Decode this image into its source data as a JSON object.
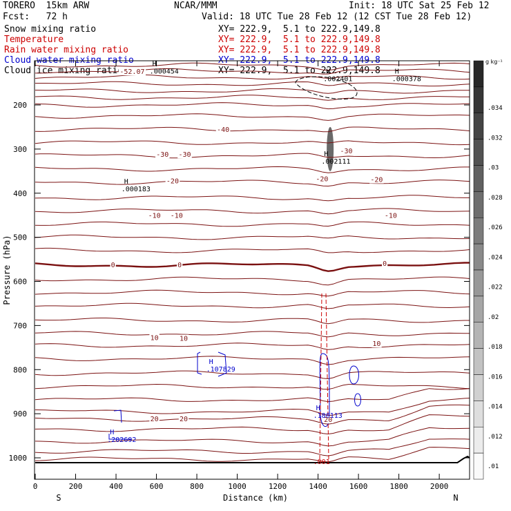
{
  "header": {
    "model": "TORERO  15km ARW",
    "center": "NCAR/MMM",
    "init": "Init: 18 UTC Sat 25 Feb 12",
    "fcst": "Fcst:   72 h",
    "valid": "Valid: 18 UTC Tue 28 Feb 12 (12 CST Tue 28 Feb 12)"
  },
  "legend": [
    {
      "label": "Snow mixing ratio",
      "xy": "XY= 222.9,  5.1 to 222.9,149.8",
      "color": "#000000"
    },
    {
      "label": "Temperature",
      "xy": "XY= 222.9,  5.1 to 222.9,149.8",
      "color": "#cc0000"
    },
    {
      "label": "Rain water mixing ratio",
      "xy": "XY= 222.9,  5.1 to 222.9,149.8",
      "color": "#cc0000"
    },
    {
      "label": "Cloud water mixing ratio",
      "xy": "XY= 222.9,  5.1 to 222.9,149.8",
      "color": "#0000cc"
    },
    {
      "label": "Cloud ice mixing ratio",
      "xy": "XY= 222.9,  5.1 to 222.9,149.8",
      "color": "#000000"
    }
  ],
  "colorbar": {
    "unit": "g kg⁻¹",
    "labels": [
      ".034",
      ".032",
      ".03",
      ".028",
      ".026",
      ".024",
      ".022",
      ".02",
      ".018",
      ".016",
      ".014",
      ".012",
      ".01"
    ]
  },
  "chart_data": {
    "type": "contour cross-section",
    "xlabel": "Distance (km)",
    "ylabel": "Pressure (hPa)",
    "xlim": [
      0,
      2150
    ],
    "ylim": [
      1050,
      100
    ],
    "x_ticks": [
      0,
      200,
      400,
      600,
      800,
      1000,
      1200,
      1400,
      1600,
      1800,
      2000
    ],
    "y_ticks": [
      200,
      300,
      400,
      500,
      600,
      700,
      800,
      900,
      1000
    ],
    "x_end_labels": {
      "left": "S",
      "right": "N"
    },
    "temperature_contour_labels": [
      {
        "text": "-52.07",
        "x": 480,
        "p": 125
      },
      {
        "text": "-40",
        "x": 930,
        "p": 256
      },
      {
        "text": "-30",
        "x": 630,
        "p": 313
      },
      {
        "text": "-30",
        "x": 740,
        "p": 313
      },
      {
        "text": "-30",
        "x": 1540,
        "p": 305
      },
      {
        "text": "-20",
        "x": 680,
        "p": 373
      },
      {
        "text": "-20",
        "x": 1420,
        "p": 368
      },
      {
        "text": "-20",
        "x": 1690,
        "p": 370
      },
      {
        "text": "-10",
        "x": 590,
        "p": 451
      },
      {
        "text": "-10",
        "x": 700,
        "p": 451
      },
      {
        "text": "-10",
        "x": 1760,
        "p": 451
      },
      {
        "text": "0",
        "x": 385,
        "p": 563
      },
      {
        "text": "0",
        "x": 715,
        "p": 563
      },
      {
        "text": "0",
        "x": 1730,
        "p": 560
      },
      {
        "text": "10",
        "x": 590,
        "p": 728
      },
      {
        "text": "10",
        "x": 735,
        "p": 730
      },
      {
        "text": "10",
        "x": 1690,
        "p": 742
      },
      {
        "text": "20",
        "x": 590,
        "p": 912
      },
      {
        "text": "20",
        "x": 735,
        "p": 912
      },
      {
        "text": "20",
        "x": 1450,
        "p": 914
      }
    ],
    "extrema_labels": [
      {
        "mark": "H",
        "value": ".000454",
        "x": 580,
        "p": 118,
        "color": "#000000"
      },
      {
        "mark": "H",
        "value": ".002401",
        "x": 1440,
        "p": 135,
        "color": "#000000"
      },
      {
        "mark": "H",
        "value": ".000378",
        "x": 1780,
        "p": 135,
        "color": "#000000"
      },
      {
        "mark": "H",
        "value": ".002111",
        "x": 1430,
        "p": 322,
        "color": "#000000"
      },
      {
        "mark": "H",
        "value": ".000183",
        "x": 440,
        "p": 385,
        "color": "#000000"
      },
      {
        "mark": "H",
        "value": ".107829",
        "x": 860,
        "p": 793,
        "color": "#0000cc"
      },
      {
        "mark": "H",
        "value": ".186113",
        "x": 1390,
        "p": 898,
        "color": "#0000cc"
      },
      {
        "mark": "H",
        "value": ".202692",
        "x": 370,
        "p": 953,
        "color": "#0000cc"
      },
      {
        "mark": "",
        "value": ".001",
        "x": 1390,
        "p": 1003,
        "color": "#cc0000"
      }
    ]
  }
}
